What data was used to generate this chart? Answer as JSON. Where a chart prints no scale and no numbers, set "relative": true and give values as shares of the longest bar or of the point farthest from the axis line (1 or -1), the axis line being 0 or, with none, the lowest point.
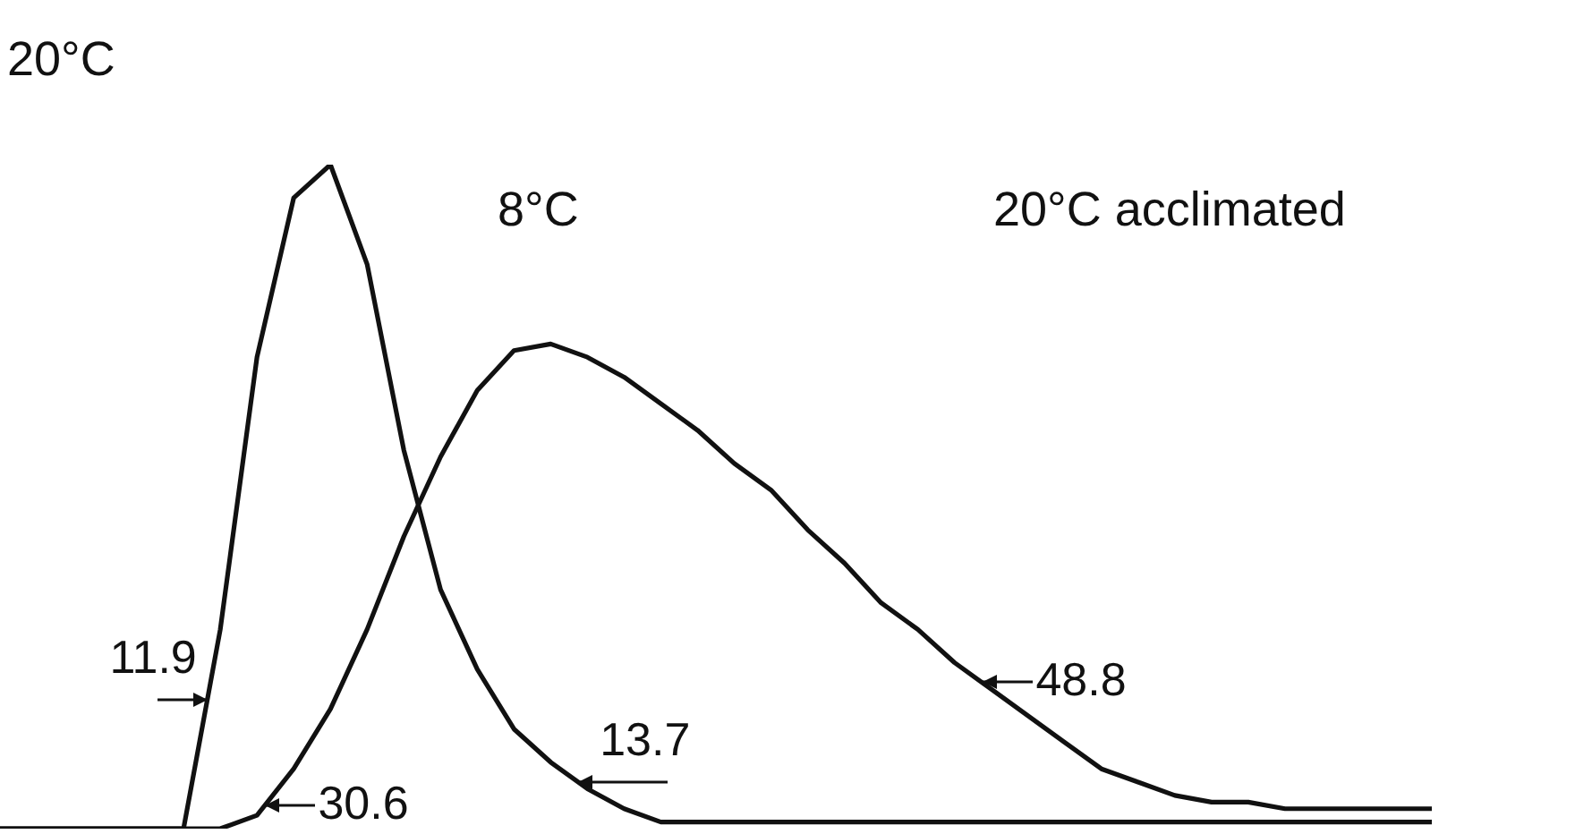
{
  "chart_data": {
    "type": "line",
    "title": "20°C",
    "relative": true,
    "grid": false,
    "legend": false,
    "marker": "none",
    "line_style": "solid",
    "categories": [
      null,
      null,
      null,
      null,
      null,
      null,
      null,
      null,
      null,
      null,
      null,
      null,
      null,
      null,
      null,
      null,
      null,
      null,
      null,
      null,
      null,
      null,
      null,
      null,
      null,
      null,
      null,
      null,
      null,
      null,
      null,
      null,
      null,
      null,
      null,
      null,
      null,
      null,
      null,
      null
    ],
    "series": [
      {
        "color": "#111111",
        "values": [
          0,
          0,
          0,
          0,
          0,
          0,
          0.3,
          0.71,
          0.95,
          1,
          0.85,
          0.57,
          0.36,
          0.24,
          0.15,
          0.1,
          0.06,
          0.03,
          0.01,
          0.01,
          0.01,
          0.01,
          0.01,
          0.01,
          0.01,
          0.01,
          0.01,
          0.01,
          0.01,
          0.01,
          0.01,
          0.01,
          0.01,
          0.01,
          0.01,
          0.01,
          0.01,
          0.01,
          0.01,
          0.01
        ]
      },
      {
        "color": "#111111",
        "values": [
          0,
          0,
          0,
          0,
          0,
          0,
          0,
          0.02,
          0.09,
          0.18,
          0.3,
          0.44,
          0.56,
          0.66,
          0.72,
          0.73,
          0.71,
          0.68,
          0.64,
          0.6,
          0.55,
          0.51,
          0.45,
          0.4,
          0.34,
          0.3,
          0.25,
          0.21,
          0.17,
          0.13,
          0.09,
          0.07,
          0.05,
          0.04,
          0.04,
          0.03,
          0.03,
          0.03,
          0.03,
          0.03
        ]
      }
    ],
    "annotations": [
      "11.9",
      "30.6",
      "13.7",
      "48.8",
      "8°C",
      "20°C acclimated"
    ]
  }
}
